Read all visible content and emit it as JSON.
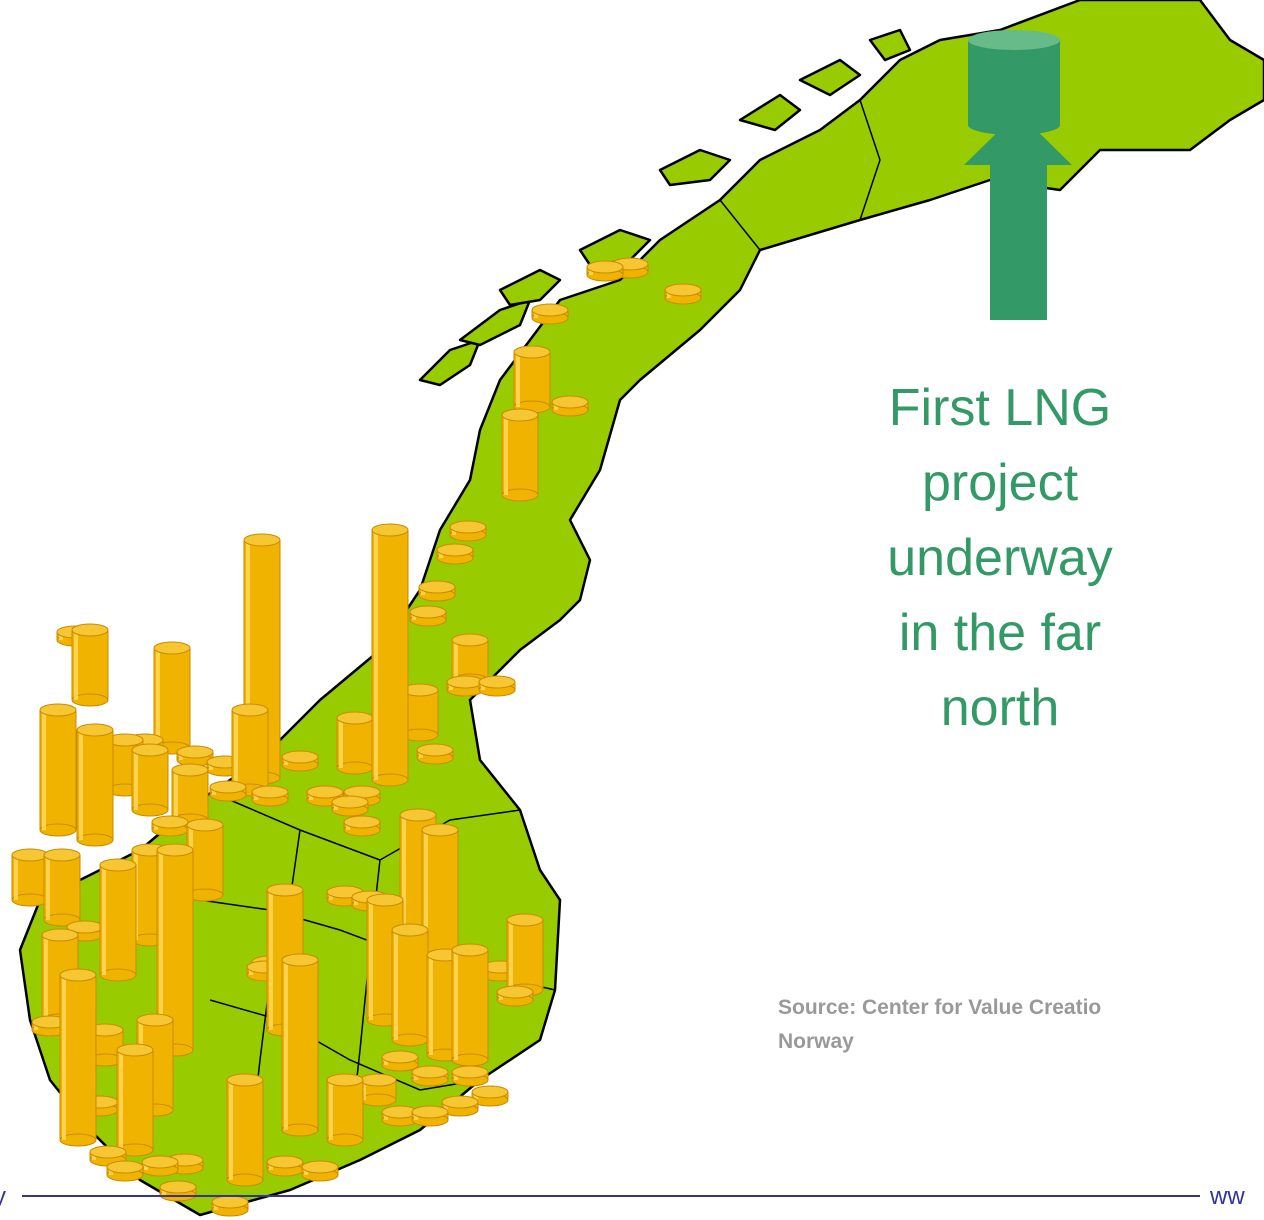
{
  "annotation_lines": [
    "First LNG",
    "project",
    "underway",
    "in the far",
    "north"
  ],
  "source_lines": [
    "Source:  Center for Value Creatio",
    "Norway"
  ],
  "footer": {
    "left": "y",
    "right": "ww"
  }
}
